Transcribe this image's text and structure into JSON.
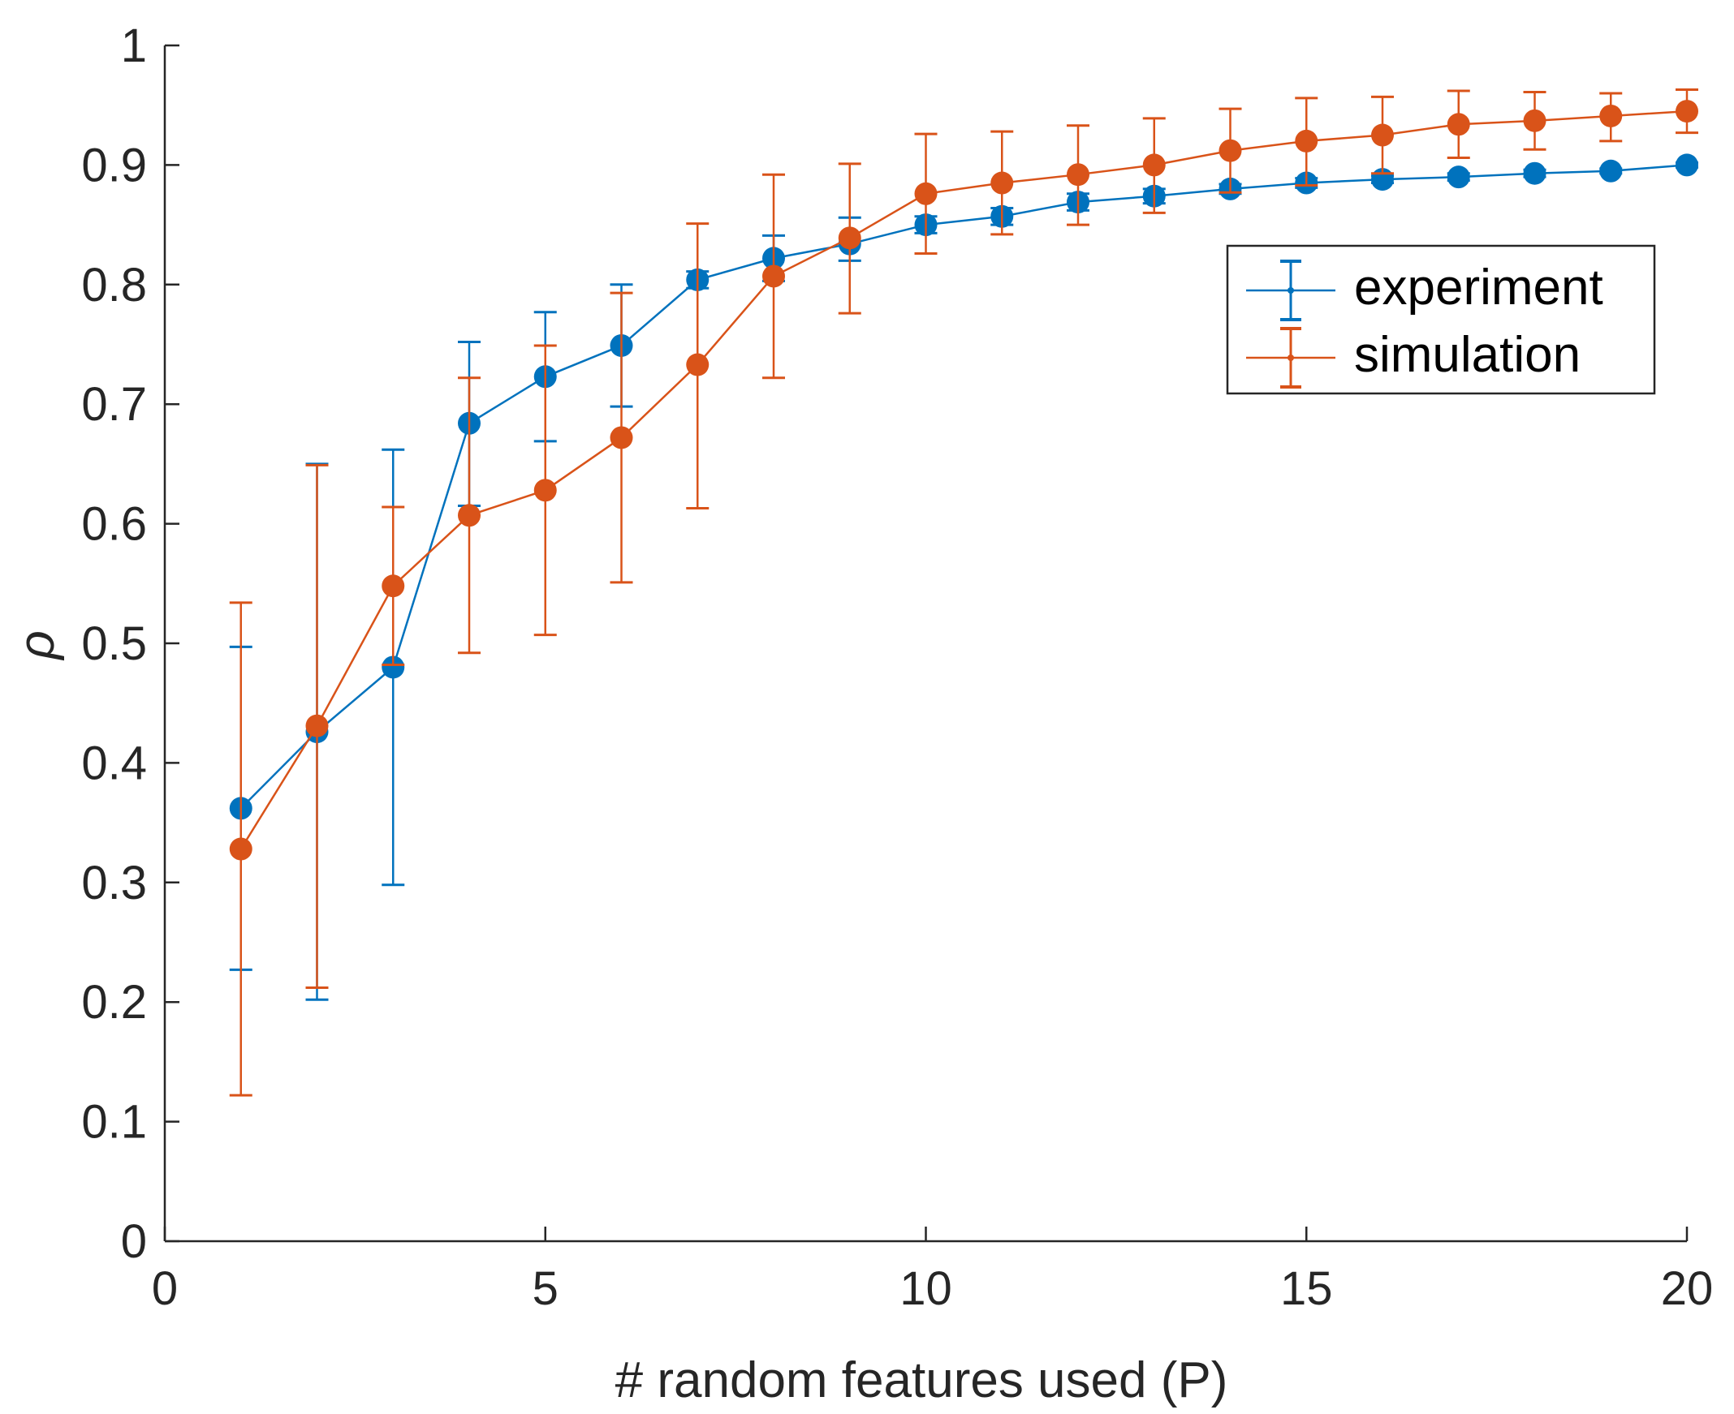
{
  "chart_data": {
    "type": "line",
    "title": "",
    "xlabel": "# random features used (P)",
    "ylabel": "ρ",
    "xlim": [
      0,
      20
    ],
    "ylim": [
      0,
      1
    ],
    "xticks": [
      0,
      5,
      10,
      15,
      20
    ],
    "xtick_labels": [
      "0",
      "5",
      "10",
      "15",
      "20"
    ],
    "yticks": [
      0,
      0.1,
      0.2,
      0.3,
      0.4,
      0.5,
      0.6,
      0.7,
      0.8,
      0.9,
      1
    ],
    "ytick_labels": [
      "0",
      "0.1",
      "0.2",
      "0.3",
      "0.4",
      "0.5",
      "0.6",
      "0.7",
      "0.8",
      "0.9",
      "1"
    ],
    "grid": false,
    "legend_position": "top-right",
    "x": [
      1,
      2,
      3,
      4,
      5,
      6,
      7,
      8,
      9,
      10,
      11,
      12,
      13,
      14,
      15,
      16,
      17,
      18,
      19,
      20
    ],
    "series": [
      {
        "name": "experiment",
        "color": "#0072BD",
        "values": [
          0.362,
          0.426,
          0.48,
          0.684,
          0.723,
          0.749,
          0.804,
          0.822,
          0.834,
          0.85,
          0.857,
          0.869,
          0.874,
          0.88,
          0.885,
          0.888,
          0.89,
          0.893,
          0.895,
          0.9
        ],
        "error_lower": [
          0.227,
          0.202,
          0.298,
          0.615,
          0.669,
          0.698,
          0.797,
          0.803,
          0.82,
          0.843,
          0.85,
          0.862,
          0.868,
          0.876,
          0.881,
          0.885,
          0.887,
          0.89,
          0.893,
          0.898
        ],
        "error_upper": [
          0.497,
          0.65,
          0.662,
          0.752,
          0.777,
          0.8,
          0.811,
          0.841,
          0.856,
          0.857,
          0.864,
          0.876,
          0.88,
          0.884,
          0.889,
          0.891,
          0.893,
          0.896,
          0.897,
          0.902
        ]
      },
      {
        "name": "simulation",
        "color": "#D95319",
        "values": [
          0.328,
          0.431,
          0.548,
          0.607,
          0.628,
          0.672,
          0.733,
          0.807,
          0.839,
          0.876,
          0.885,
          0.892,
          0.9,
          0.912,
          0.92,
          0.925,
          0.934,
          0.937,
          0.941,
          0.945
        ],
        "error_lower": [
          0.122,
          0.212,
          0.482,
          0.492,
          0.507,
          0.551,
          0.613,
          0.722,
          0.776,
          0.826,
          0.842,
          0.85,
          0.86,
          0.877,
          0.883,
          0.893,
          0.906,
          0.913,
          0.92,
          0.927
        ],
        "error_upper": [
          0.534,
          0.649,
          0.614,
          0.722,
          0.749,
          0.793,
          0.851,
          0.892,
          0.901,
          0.926,
          0.928,
          0.933,
          0.939,
          0.947,
          0.956,
          0.957,
          0.962,
          0.961,
          0.96,
          0.963
        ]
      }
    ]
  }
}
